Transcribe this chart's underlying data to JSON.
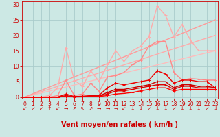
{
  "xlabel": "Vent moyen/en rafales ( km/h )",
  "bg_color": "#cce8e4",
  "grid_color": "#aacccc",
  "xlim": [
    0,
    23
  ],
  "ylim": [
    0,
    31
  ],
  "yticks": [
    0,
    5,
    10,
    15,
    20,
    25,
    30
  ],
  "xticks": [
    0,
    1,
    2,
    3,
    4,
    5,
    6,
    7,
    8,
    9,
    10,
    11,
    12,
    13,
    14,
    15,
    16,
    17,
    18,
    19,
    20,
    21,
    22,
    23
  ],
  "lines": [
    {
      "color": "#ffbbbb",
      "lw": 1.0,
      "marker": null,
      "x": [
        0,
        23
      ],
      "y": [
        0,
        15
      ]
    },
    {
      "color": "#ffaaaa",
      "lw": 1.0,
      "marker": null,
      "x": [
        0,
        23
      ],
      "y": [
        0,
        20
      ]
    },
    {
      "color": "#ff9999",
      "lw": 1.0,
      "marker": null,
      "x": [
        0,
        23
      ],
      "y": [
        0,
        25
      ]
    },
    {
      "color": "#ffaaaa",
      "lw": 1.0,
      "marker": "+",
      "ms": 3,
      "x": [
        0,
        1,
        2,
        3,
        4,
        5,
        6,
        7,
        8,
        9,
        10,
        11,
        12,
        13,
        14,
        15,
        16,
        17,
        18,
        19,
        20,
        21,
        22,
        23
      ],
      "y": [
        0,
        0,
        0,
        0.5,
        3.0,
        16.0,
        5.5,
        3.5,
        8.5,
        5.0,
        10.5,
        15.0,
        11.5,
        15.0,
        16.5,
        19.5,
        29.5,
        26.5,
        19.5,
        23.5,
        18.5,
        15.0,
        15.0,
        15.0
      ]
    },
    {
      "color": "#ff8888",
      "lw": 1.0,
      "marker": "+",
      "ms": 3,
      "x": [
        0,
        1,
        2,
        3,
        4,
        5,
        6,
        7,
        8,
        9,
        10,
        11,
        12,
        13,
        14,
        15,
        16,
        17,
        18,
        19,
        20,
        21,
        22,
        23
      ],
      "y": [
        0,
        0,
        0,
        0,
        0.5,
        5.5,
        0.5,
        1.0,
        4.5,
        1.8,
        6.5,
        7.0,
        8.0,
        10.5,
        12.0,
        16.5,
        18.0,
        18.0,
        8.0,
        5.5,
        6.0,
        5.8,
        5.5,
        5.5
      ]
    },
    {
      "color": "#ee0000",
      "lw": 1.0,
      "marker": "+",
      "ms": 3,
      "x": [
        0,
        1,
        2,
        3,
        4,
        5,
        6,
        7,
        8,
        9,
        10,
        11,
        12,
        13,
        14,
        15,
        16,
        17,
        18,
        19,
        20,
        21,
        22,
        23
      ],
      "y": [
        0,
        0,
        0,
        0,
        0,
        1.0,
        0.2,
        0.3,
        0.5,
        0.6,
        3.0,
        4.5,
        4.0,
        4.5,
        5.0,
        5.5,
        8.5,
        7.5,
        4.5,
        5.5,
        5.5,
        5.0,
        5.0,
        3.0
      ]
    },
    {
      "color": "#cc0000",
      "lw": 1.0,
      "marker": "+",
      "ms": 3,
      "x": [
        0,
        1,
        2,
        3,
        4,
        5,
        6,
        7,
        8,
        9,
        10,
        11,
        12,
        13,
        14,
        15,
        16,
        17,
        18,
        19,
        20,
        21,
        22,
        23
      ],
      "y": [
        0,
        0,
        0,
        0,
        0,
        0.5,
        0.1,
        0.2,
        0.3,
        0.4,
        1.5,
        2.5,
        2.5,
        3.0,
        3.5,
        4.0,
        5.0,
        5.0,
        3.0,
        4.0,
        4.0,
        3.5,
        3.5,
        3.0
      ]
    },
    {
      "color": "#dd0000",
      "lw": 1.0,
      "marker": "+",
      "ms": 3,
      "x": [
        0,
        1,
        2,
        3,
        4,
        5,
        6,
        7,
        8,
        9,
        10,
        11,
        12,
        13,
        14,
        15,
        16,
        17,
        18,
        19,
        20,
        21,
        22,
        23
      ],
      "y": [
        0,
        0,
        0,
        0,
        0,
        0.3,
        0.1,
        0.15,
        0.2,
        0.3,
        1.0,
        2.0,
        2.0,
        2.5,
        3.0,
        3.5,
        4.0,
        4.0,
        2.5,
        3.5,
        3.5,
        3.0,
        3.0,
        3.0
      ]
    },
    {
      "color": "#ff0000",
      "lw": 1.0,
      "marker": "+",
      "ms": 3,
      "x": [
        0,
        1,
        2,
        3,
        4,
        5,
        6,
        7,
        8,
        9,
        10,
        11,
        12,
        13,
        14,
        15,
        16,
        17,
        18,
        19,
        20,
        21,
        22,
        23
      ],
      "y": [
        0,
        0,
        0,
        0,
        0,
        0.2,
        0.05,
        0.1,
        0.15,
        0.2,
        0.5,
        1.0,
        1.2,
        1.5,
        2.0,
        2.5,
        3.0,
        3.0,
        2.0,
        2.5,
        2.5,
        2.5,
        2.5,
        2.5
      ]
    }
  ],
  "arrows": [
    "↙",
    "↙",
    "↙",
    "↑",
    "↙",
    "→",
    "↗",
    "↖",
    "↗",
    "→",
    "→",
    "→",
    "↙",
    "↓",
    "↓",
    "↙",
    "↓",
    "↓",
    "↙",
    "↓",
    "↓",
    "↓",
    "↙",
    "↓"
  ],
  "tick_color": "#cc0000",
  "label_color": "#cc0000",
  "label_fontsize": 7,
  "tick_fontsize": 5.5,
  "arrow_fontsize": 5.5
}
